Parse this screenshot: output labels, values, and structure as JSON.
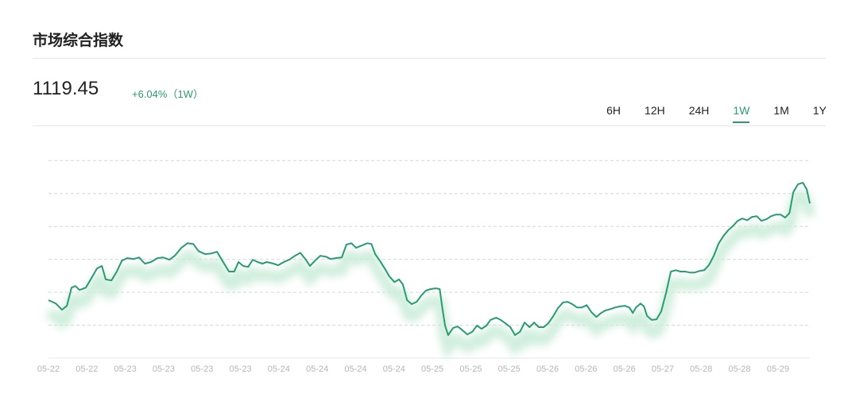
{
  "header": {
    "title": "市场综合指数",
    "price": "1119.45",
    "change": "+6.04%（1W）",
    "tabs": [
      {
        "label": "6H",
        "active": false
      },
      {
        "label": "12H",
        "active": false
      },
      {
        "label": "24H",
        "active": false
      },
      {
        "label": "1W",
        "active": true
      },
      {
        "label": "1M",
        "active": false
      },
      {
        "label": "1Y",
        "active": false
      }
    ]
  },
  "chart_data": {
    "type": "line",
    "color": "#2a9a72",
    "grid": true,
    "xlim": [
      0,
      19.83
    ],
    "ylim": [
      0,
      6.2
    ],
    "yticks": [
      0,
      1,
      2,
      3,
      4,
      5,
      6
    ],
    "xticks": [
      {
        "value": 0,
        "label": "05-22"
      },
      {
        "value": 1,
        "label": "05-22"
      },
      {
        "value": 2,
        "label": "05-23"
      },
      {
        "value": 3,
        "label": "05-23"
      },
      {
        "value": 4,
        "label": "05-23"
      },
      {
        "value": 5,
        "label": "05-23"
      },
      {
        "value": 6,
        "label": "05-24"
      },
      {
        "value": 7,
        "label": "05-24"
      },
      {
        "value": 8,
        "label": "05-24"
      },
      {
        "value": 9,
        "label": "05-24"
      },
      {
        "value": 10,
        "label": "05-25"
      },
      {
        "value": 11,
        "label": "05-25"
      },
      {
        "value": 12,
        "label": "05-25"
      },
      {
        "value": 13,
        "label": "05-26"
      },
      {
        "value": 14,
        "label": "05-26"
      },
      {
        "value": 15,
        "label": "05-26"
      },
      {
        "value": 16,
        "label": "05-27"
      },
      {
        "value": 17,
        "label": "05-28"
      },
      {
        "value": 18,
        "label": "05-28"
      },
      {
        "value": 19,
        "label": "05-29"
      }
    ],
    "x": [
      0,
      0.19,
      0.35,
      0.48,
      0.6,
      0.7,
      0.81,
      0.97,
      1.12,
      1.26,
      1.39,
      1.49,
      1.64,
      1.78,
      1.91,
      2.05,
      2.22,
      2.36,
      2.51,
      2.67,
      2.84,
      2.98,
      3.15,
      3.29,
      3.46,
      3.62,
      3.77,
      3.91,
      4.08,
      4.24,
      4.39,
      4.53,
      4.7,
      4.84,
      4.95,
      5.07,
      5.2,
      5.32,
      5.45,
      5.57,
      5.69,
      5.86,
      5.98,
      6.13,
      6.27,
      6.42,
      6.56,
      6.69,
      6.81,
      6.94,
      7.08,
      7.23,
      7.35,
      7.49,
      7.64,
      7.76,
      7.89,
      8.01,
      8.16,
      8.3,
      8.41,
      8.51,
      8.63,
      8.76,
      8.88,
      9.01,
      9.13,
      9.23,
      9.34,
      9.46,
      9.59,
      9.71,
      9.83,
      9.96,
      10.08,
      10.19,
      10.25,
      10.33,
      10.41,
      10.54,
      10.66,
      10.79,
      10.91,
      11.04,
      11.16,
      11.28,
      11.41,
      11.51,
      11.66,
      11.78,
      11.9,
      12.03,
      12.15,
      12.28,
      12.4,
      12.53,
      12.65,
      12.77,
      12.9,
      13.02,
      13.15,
      13.27,
      13.4,
      13.52,
      13.64,
      13.77,
      13.89,
      14.02,
      14.14,
      14.27,
      14.39,
      14.51,
      14.64,
      14.76,
      14.89,
      15.01,
      15.13,
      15.22,
      15.3,
      15.42,
      15.51,
      15.59,
      15.71,
      15.84,
      15.96,
      16.09,
      16.21,
      16.34,
      16.46,
      16.58,
      16.71,
      16.83,
      16.96,
      17.08,
      17.2,
      17.33,
      17.45,
      17.58,
      17.7,
      17.83,
      17.95,
      18.07,
      18.2,
      18.32,
      18.45,
      18.57,
      18.7,
      18.82,
      18.94,
      19.07,
      19.19,
      19.3,
      19.4,
      19.52,
      19.65,
      19.75,
      19.83
    ],
    "values": [
      1.76,
      1.66,
      1.47,
      1.59,
      2.14,
      2.19,
      2.07,
      2.14,
      2.43,
      2.72,
      2.8,
      2.39,
      2.36,
      2.63,
      2.96,
      3.04,
      3.01,
      3.06,
      2.87,
      2.92,
      3.04,
      3.06,
      2.99,
      3.11,
      3.35,
      3.49,
      3.47,
      3.25,
      3.16,
      3.18,
      3.23,
      2.96,
      2.63,
      2.63,
      2.92,
      2.8,
      2.77,
      2.99,
      2.92,
      2.87,
      2.92,
      2.87,
      2.82,
      2.92,
      2.99,
      3.11,
      3.2,
      3.01,
      2.8,
      2.96,
      3.11,
      3.08,
      3.01,
      3.04,
      3.06,
      3.45,
      3.49,
      3.35,
      3.42,
      3.49,
      3.47,
      3.16,
      2.96,
      2.72,
      2.48,
      2.31,
      2.39,
      2.24,
      1.76,
      1.64,
      1.71,
      1.9,
      2.05,
      2.1,
      2.12,
      2.1,
      1.59,
      0.99,
      0.7,
      0.92,
      0.96,
      0.84,
      0.72,
      0.8,
      0.99,
      0.89,
      0.99,
      1.16,
      1.23,
      1.16,
      1.06,
      0.94,
      0.7,
      0.8,
      1.08,
      0.94,
      1.08,
      0.94,
      0.94,
      1.06,
      1.28,
      1.52,
      1.69,
      1.71,
      1.64,
      1.54,
      1.54,
      1.61,
      1.4,
      1.25,
      1.37,
      1.45,
      1.49,
      1.54,
      1.57,
      1.59,
      1.54,
      1.37,
      1.54,
      1.66,
      1.57,
      1.28,
      1.16,
      1.18,
      1.42,
      2.0,
      2.63,
      2.67,
      2.63,
      2.63,
      2.6,
      2.6,
      2.65,
      2.67,
      2.82,
      3.11,
      3.47,
      3.71,
      3.88,
      4.02,
      4.17,
      4.24,
      4.19,
      4.29,
      4.31,
      4.17,
      4.22,
      4.31,
      4.36,
      4.36,
      4.27,
      4.41,
      5.04,
      5.28,
      5.33,
      5.13,
      4.7
    ]
  }
}
